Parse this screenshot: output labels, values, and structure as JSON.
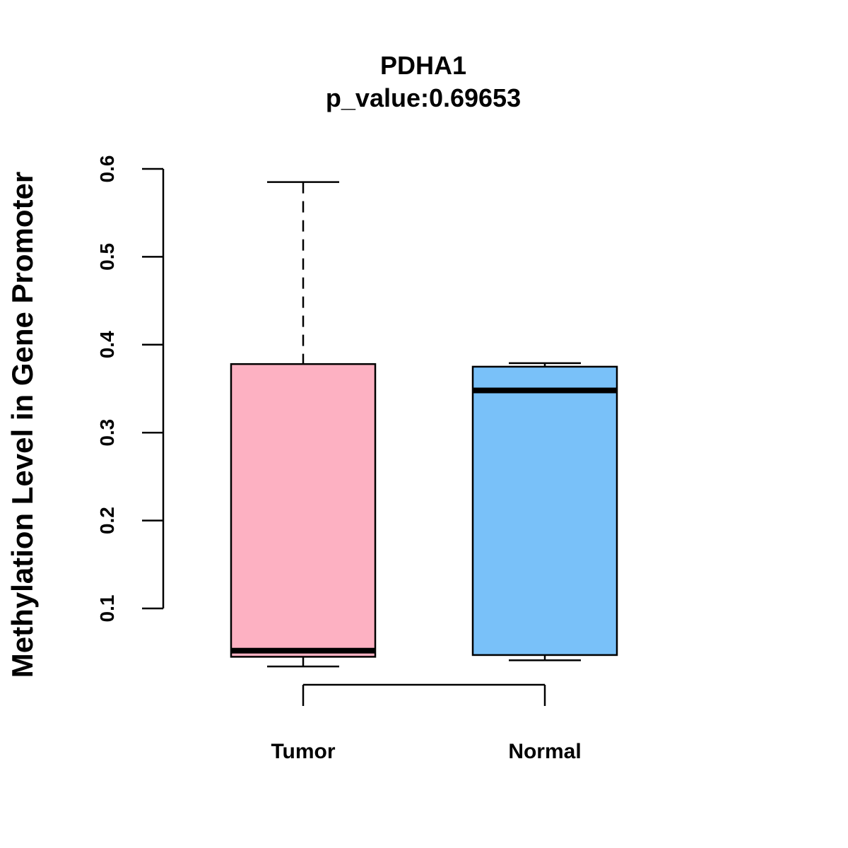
{
  "chart_data": {
    "type": "box",
    "title": "PDHA1",
    "subtitle": "p_value:0.69653",
    "ylabel": "Methylation Level in Gene Promoter",
    "xlabel": "",
    "yticks": [
      0.1,
      0.2,
      0.3,
      0.4,
      0.5,
      0.6
    ],
    "ytick_labels": [
      "0.1",
      "0.2",
      "0.3",
      "0.4",
      "0.5",
      "0.6"
    ],
    "categories": [
      "Tumor",
      "Normal"
    ],
    "boxes": [
      {
        "category": "Tumor",
        "min": 0.034,
        "q1": 0.045,
        "median": 0.052,
        "q3": 0.378,
        "max": 0.585,
        "color": "#FDB1C2"
      },
      {
        "category": "Normal",
        "min": 0.041,
        "q1": 0.047,
        "median": 0.348,
        "q3": 0.375,
        "max": 0.379,
        "color": "#79C1F9"
      }
    ],
    "grid": false,
    "legend": "none"
  }
}
